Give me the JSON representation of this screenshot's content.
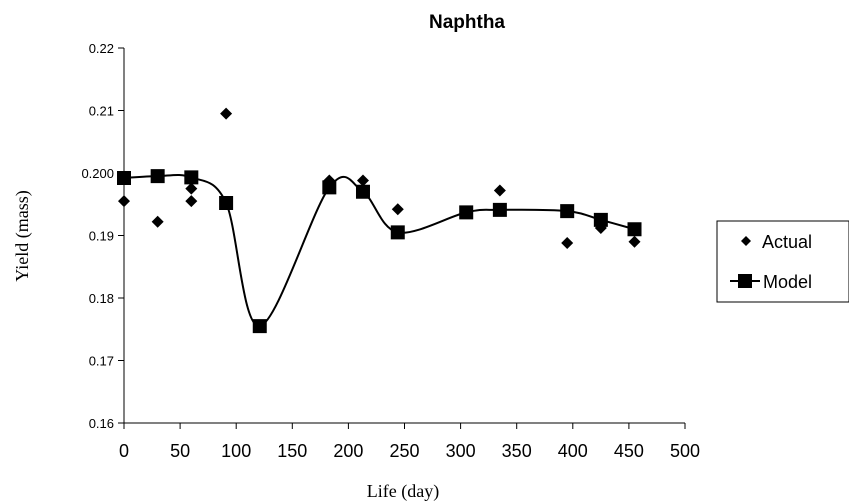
{
  "chart_data": {
    "type": "scatter",
    "title": "Naphtha",
    "xlabel": "Life (day)",
    "ylabel": "Yield (mass)",
    "xlim": [
      0,
      500
    ],
    "ylim": [
      0.16,
      0.22
    ],
    "x_ticks": [
      0,
      50,
      100,
      150,
      200,
      250,
      300,
      350,
      400,
      450,
      500
    ],
    "y_ticks": [
      0.16,
      0.17,
      0.18,
      0.19,
      0.2,
      0.21,
      0.22
    ],
    "x_tick_labels": [
      "0",
      "50",
      "100",
      "150",
      "200",
      "250",
      "300",
      "350",
      "400",
      "450",
      "500"
    ],
    "y_tick_labels": [
      "0.16",
      "0.17",
      "0.18",
      "0.19",
      "0.200",
      "0.21",
      "0.22"
    ],
    "grid": false,
    "legend_position": "right",
    "series": [
      {
        "name": "Actual",
        "marker": "diamond",
        "line": false,
        "color": "#000000",
        "points": [
          [
            0,
            0.1955
          ],
          [
            30,
            0.1922
          ],
          [
            60,
            0.1975
          ],
          [
            60,
            0.1955
          ],
          [
            91,
            0.2095
          ],
          [
            183,
            0.1988
          ],
          [
            213,
            0.1988
          ],
          [
            244,
            0.1942
          ],
          [
            335,
            0.1972
          ],
          [
            395,
            0.1888
          ],
          [
            425,
            0.1912
          ],
          [
            455,
            0.189
          ]
        ]
      },
      {
        "name": "Model",
        "marker": "square",
        "line": true,
        "color": "#000000",
        "points": [
          [
            0,
            0.1992
          ],
          [
            30,
            0.1995
          ],
          [
            60,
            0.1993
          ],
          [
            91,
            0.1952
          ],
          [
            121,
            0.1755
          ],
          [
            183,
            0.1977
          ],
          [
            213,
            0.197
          ],
          [
            244,
            0.1905
          ],
          [
            305,
            0.1937
          ],
          [
            335,
            0.1941
          ],
          [
            395,
            0.1939
          ],
          [
            425,
            0.1925
          ],
          [
            455,
            0.191
          ]
        ]
      }
    ]
  }
}
